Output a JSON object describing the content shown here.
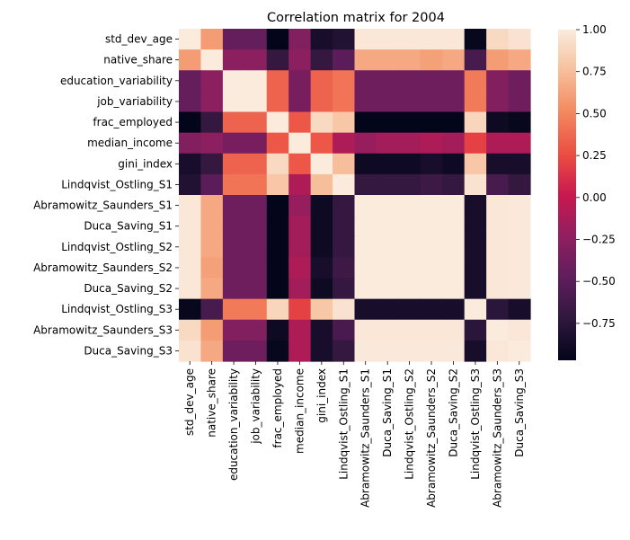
{
  "chart_data": {
    "type": "heatmap",
    "title": "Correlation matrix for 2004",
    "xlabel": "",
    "ylabel": "",
    "labels": [
      "std_dev_age",
      "native_share",
      "education_variability",
      "job_variability",
      "frac_employed",
      "median_income",
      "gini_index",
      "Lindqvist_Ostling_S1",
      "Abramowitz_Saunders_S1",
      "Duca_Saving_S1",
      "Lindqvist_Ostling_S2",
      "Abramowitz_Saunders_S2",
      "Duca_Saving_S2",
      "Lindqvist_Ostling_S3",
      "Abramowitz_Saunders_S3",
      "Duca_Saving_S3"
    ],
    "values": [
      [
        1.0,
        0.6,
        -0.45,
        -0.45,
        -0.97,
        -0.3,
        -0.85,
        -0.8,
        0.98,
        0.98,
        0.98,
        0.98,
        0.98,
        -0.95,
        0.9,
        0.95
      ],
      [
        0.6,
        1.0,
        -0.25,
        -0.25,
        -0.7,
        -0.25,
        -0.7,
        -0.5,
        0.65,
        0.65,
        0.65,
        0.62,
        0.65,
        -0.6,
        0.6,
        0.65
      ],
      [
        -0.45,
        -0.25,
        1.0,
        1.0,
        0.35,
        -0.35,
        0.35,
        0.42,
        -0.4,
        -0.4,
        -0.4,
        -0.4,
        -0.4,
        0.45,
        -0.3,
        -0.4
      ],
      [
        -0.45,
        -0.25,
        1.0,
        1.0,
        0.35,
        -0.35,
        0.35,
        0.42,
        -0.4,
        -0.4,
        -0.4,
        -0.4,
        -0.4,
        0.45,
        -0.3,
        -0.4
      ],
      [
        -0.97,
        -0.7,
        0.35,
        0.35,
        1.0,
        0.3,
        0.9,
        0.8,
        -0.97,
        -0.97,
        -0.97,
        -0.97,
        -0.97,
        0.88,
        -0.9,
        -0.95
      ],
      [
        -0.3,
        -0.25,
        -0.35,
        -0.35,
        0.3,
        1.0,
        0.3,
        -0.1,
        -0.2,
        -0.15,
        -0.15,
        -0.1,
        -0.15,
        0.2,
        -0.1,
        -0.1
      ],
      [
        -0.85,
        -0.7,
        0.35,
        0.35,
        0.9,
        0.3,
        1.0,
        0.75,
        -0.9,
        -0.9,
        -0.9,
        -0.85,
        -0.9,
        0.8,
        -0.85,
        -0.85
      ],
      [
        -0.8,
        -0.5,
        0.42,
        0.42,
        0.8,
        -0.1,
        0.75,
        1.0,
        -0.7,
        -0.7,
        -0.7,
        -0.65,
        -0.7,
        0.95,
        -0.6,
        -0.7
      ],
      [
        0.98,
        0.65,
        -0.4,
        -0.4,
        -0.97,
        -0.2,
        -0.9,
        -0.7,
        1.0,
        1.0,
        1.0,
        1.0,
        1.0,
        -0.85,
        0.98,
        0.99
      ],
      [
        0.98,
        0.65,
        -0.4,
        -0.4,
        -0.97,
        -0.15,
        -0.9,
        -0.7,
        1.0,
        1.0,
        1.0,
        1.0,
        1.0,
        -0.85,
        0.98,
        0.99
      ],
      [
        0.98,
        0.65,
        -0.4,
        -0.4,
        -0.97,
        -0.15,
        -0.9,
        -0.7,
        1.0,
        1.0,
        1.0,
        1.0,
        1.0,
        -0.85,
        0.98,
        0.99
      ],
      [
        0.98,
        0.62,
        -0.4,
        -0.4,
        -0.97,
        -0.1,
        -0.85,
        -0.65,
        1.0,
        1.0,
        1.0,
        1.0,
        1.0,
        -0.85,
        0.98,
        0.99
      ],
      [
        0.98,
        0.65,
        -0.4,
        -0.4,
        -0.97,
        -0.15,
        -0.9,
        -0.7,
        1.0,
        1.0,
        1.0,
        1.0,
        1.0,
        -0.85,
        0.98,
        0.99
      ],
      [
        -0.95,
        -0.6,
        0.45,
        0.45,
        0.88,
        0.2,
        0.8,
        0.95,
        -0.85,
        -0.85,
        -0.85,
        -0.85,
        -0.85,
        1.0,
        -0.75,
        -0.85
      ],
      [
        0.9,
        0.6,
        -0.3,
        -0.3,
        -0.9,
        -0.1,
        -0.85,
        -0.6,
        0.98,
        0.98,
        0.98,
        0.98,
        0.98,
        -0.75,
        1.0,
        0.98
      ],
      [
        0.95,
        0.65,
        -0.4,
        -0.4,
        -0.95,
        -0.1,
        -0.85,
        -0.7,
        0.99,
        0.99,
        0.99,
        0.99,
        0.99,
        -0.85,
        0.98,
        1.0
      ]
    ],
    "colorbar": {
      "vmin": -0.97,
      "vmax": 1.0,
      "ticks": [
        1.0,
        0.75,
        0.5,
        0.25,
        0.0,
        -0.25,
        -0.5,
        -0.75
      ],
      "tick_labels": [
        "1.00",
        "0.75",
        "0.50",
        "0.25",
        "0.00",
        "−0.25",
        "−0.50",
        "−0.75"
      ],
      "colormap": "rocket"
    },
    "grid": false,
    "legend": "none"
  }
}
